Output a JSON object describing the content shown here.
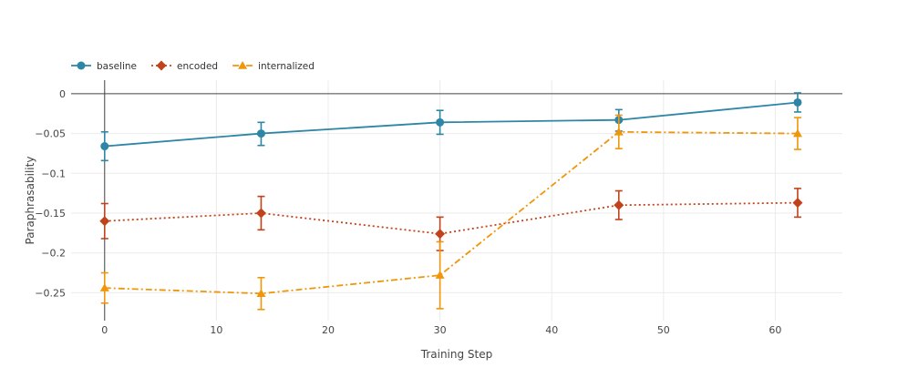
{
  "chart_data": {
    "type": "line",
    "title": "",
    "xlabel": "Training Step",
    "ylabel": "Paraphrasability",
    "xlim": [
      -3,
      66
    ],
    "ylim": [
      -0.285,
      0.017
    ],
    "x_ticks": [
      0,
      10,
      20,
      30,
      40,
      50,
      60
    ],
    "y_ticks": [
      0,
      -0.05,
      -0.1,
      -0.15,
      -0.2,
      -0.25
    ],
    "y_tick_labels": [
      "0",
      "−0.05",
      "−0.1",
      "−0.15",
      "−0.2",
      "−0.25"
    ],
    "grid": true,
    "legend_position": "top-left",
    "series": [
      {
        "name": "baseline",
        "color": "#2e86a6",
        "marker": "circle",
        "dash": "solid",
        "x": [
          0,
          14,
          30,
          46,
          62
        ],
        "y": [
          -0.066,
          -0.05,
          -0.036,
          -0.033,
          -0.011
        ],
        "err_low": [
          0.018,
          0.015,
          0.015,
          0.014,
          0.012
        ],
        "err_high": [
          0.018,
          0.014,
          0.015,
          0.013,
          0.012
        ]
      },
      {
        "name": "encoded",
        "color": "#c1431b",
        "marker": "diamond",
        "dash": "dot",
        "x": [
          0,
          14,
          30,
          46,
          62
        ],
        "y": [
          -0.16,
          -0.15,
          -0.176,
          -0.14,
          -0.137
        ],
        "err_low": [
          0.022,
          0.021,
          0.021,
          0.018,
          0.018
        ],
        "err_high": [
          0.022,
          0.021,
          0.021,
          0.018,
          0.018
        ]
      },
      {
        "name": "internalized",
        "color": "#f0960a",
        "marker": "triangle",
        "dash": "dashdot",
        "x": [
          0,
          14,
          30,
          46,
          62
        ],
        "y": [
          -0.244,
          -0.251,
          -0.228,
          -0.048,
          -0.05
        ],
        "err_low": [
          0.019,
          0.02,
          0.042,
          0.021,
          0.02
        ],
        "err_high": [
          0.019,
          0.02,
          0.042,
          0.021,
          0.02
        ]
      }
    ]
  }
}
